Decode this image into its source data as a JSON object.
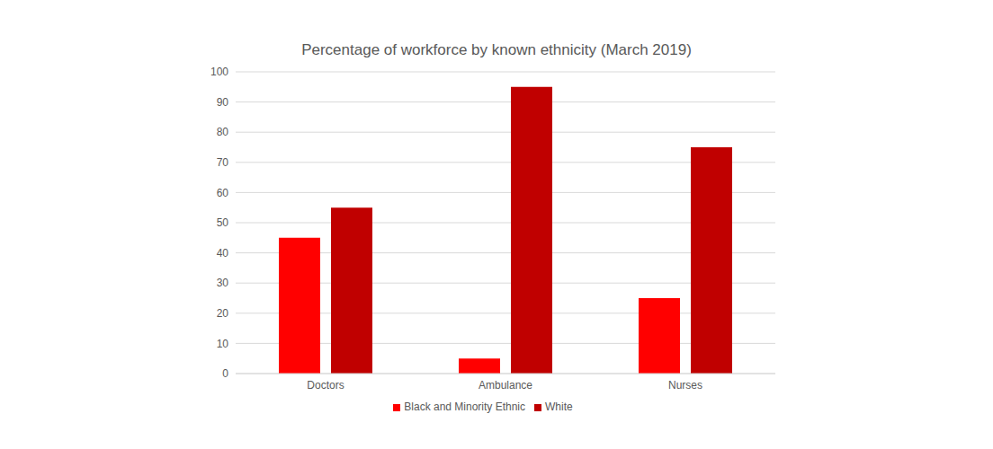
{
  "chart_data": {
    "type": "bar",
    "title": "Percentage of workforce by known ethnicity (March 2019)",
    "categories": [
      "Doctors",
      "Ambulance",
      "Nurses"
    ],
    "series": [
      {
        "name": "Black and Minority Ethnic",
        "color": "#ff0000",
        "values": [
          45,
          5,
          25
        ]
      },
      {
        "name": "White",
        "color": "#c00000",
        "values": [
          55,
          95,
          75
        ]
      }
    ],
    "ylim": [
      0,
      100
    ],
    "yticks": [
      0,
      10,
      20,
      30,
      40,
      50,
      60,
      70,
      80,
      90,
      100
    ],
    "grid": true,
    "legend": "bottom"
  }
}
